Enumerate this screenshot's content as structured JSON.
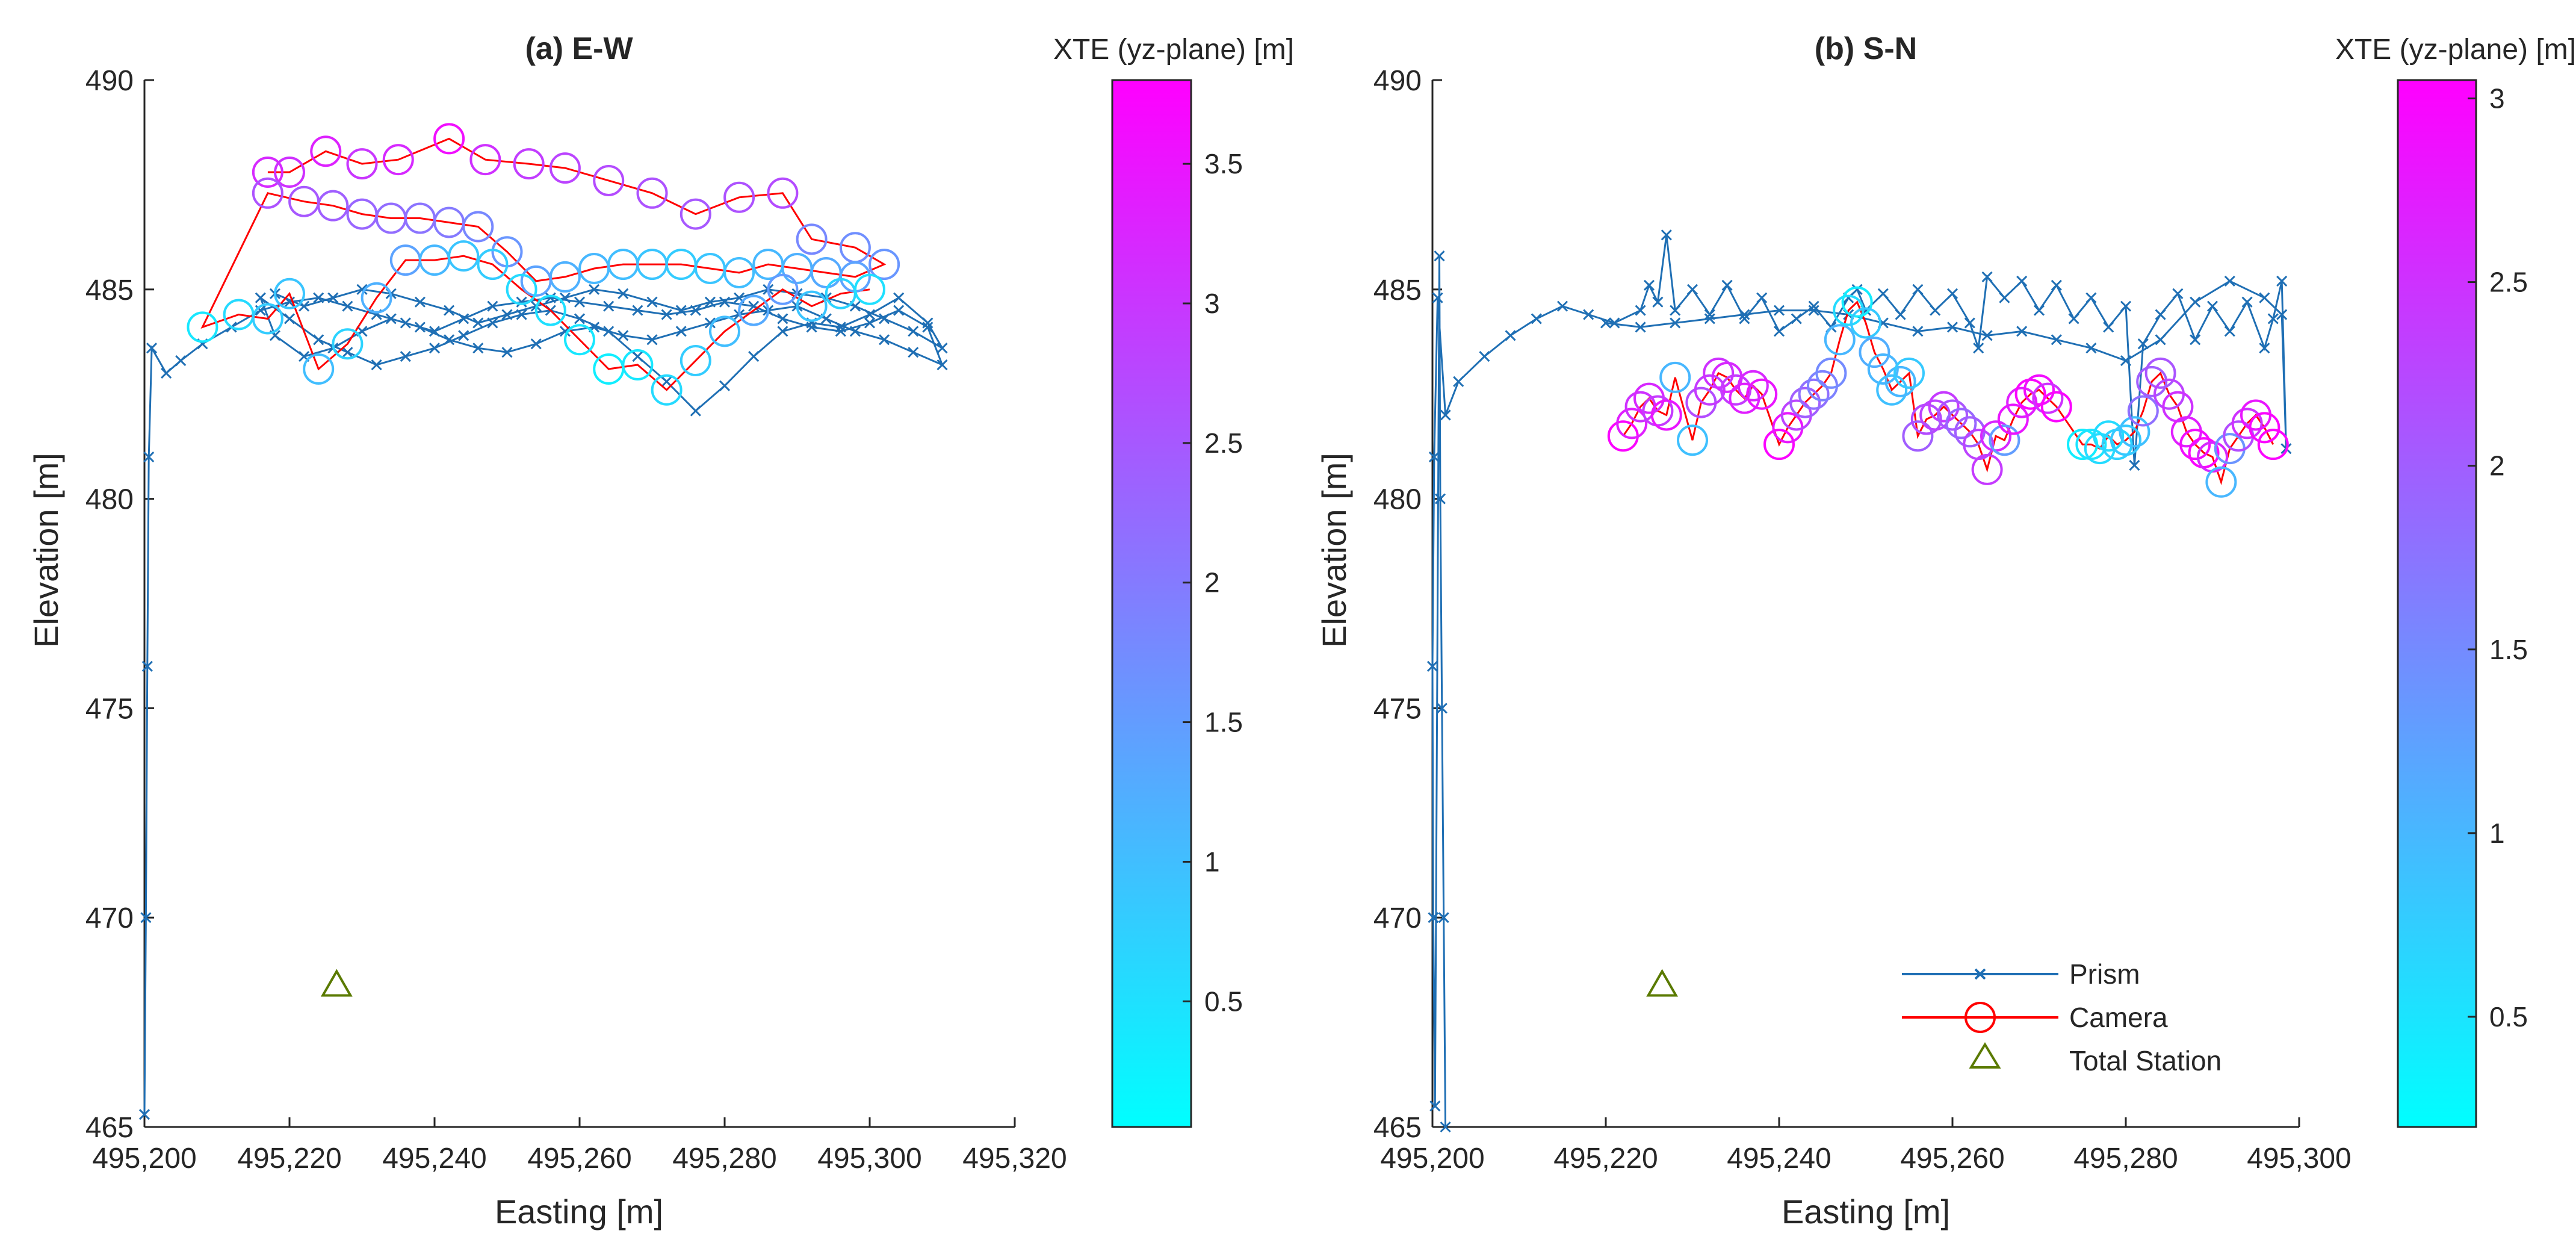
{
  "chart_data": [
    {
      "type": "line",
      "title": "(a) E-W",
      "xlabel": "Easting [m]",
      "ylabel": "Elevation [m]",
      "xlim": [
        495200,
        495320
      ],
      "ylim": [
        465,
        490
      ],
      "xticks": [
        495200,
        495220,
        495240,
        495260,
        495280,
        495300,
        495320
      ],
      "xtick_labels": [
        "495,200",
        "495,220",
        "495,240",
        "495,260",
        "495,280",
        "495,300",
        "495,320"
      ],
      "yticks": [
        465,
        470,
        475,
        480,
        485,
        490
      ],
      "ytick_labels": [
        "465",
        "470",
        "475",
        "480",
        "485",
        "490"
      ],
      "colorbar": {
        "label": "XTE (yz-plane) [m]",
        "range": [
          0.05,
          3.8
        ],
        "ticks": [
          0.5,
          1,
          1.5,
          2,
          2.5,
          3,
          3.5
        ],
        "tick_labels": [
          "0.5",
          "1",
          "1.5",
          "2",
          "2.5",
          "3",
          "3.5"
        ],
        "colormap": [
          "#00ffff",
          "#ff00ff"
        ]
      },
      "total_station": {
        "x": 495226.5,
        "y": 468.4
      },
      "series": [
        {
          "name": "Prism",
          "color": "#1f6fb4",
          "marker": "x",
          "x": [
            495200.0,
            495200.2,
            495200.4,
            495200.6,
            495201.0,
            495203,
            495205,
            495208,
            495212,
            495216,
            495220,
            495224,
            495228,
            495232,
            495236,
            495240,
            495244,
            495248,
            495252,
            495256,
            495260,
            495264,
            495268,
            495272,
            495276,
            495280,
            495284,
            495288,
            495292,
            495296,
            495300,
            495304,
            495308,
            495310,
            495306,
            495302,
            495298,
            495294,
            495290,
            495286,
            495282,
            495278,
            495274,
            495270,
            495266,
            495262,
            495258,
            495254,
            495250,
            495246,
            495242,
            495238,
            495234,
            495230,
            495226,
            495222,
            495218,
            495216,
            495220,
            495224,
            495228,
            495232,
            495236,
            495240,
            495244,
            495248,
            495252,
            495256,
            495260,
            495264,
            495268,
            495272,
            495276,
            495280,
            495284,
            495288,
            495292,
            495296,
            495300,
            495304,
            495308,
            495310,
            495306,
            495302,
            495298,
            495294,
            495290,
            495286,
            495282,
            495278,
            495274,
            495270,
            495266,
            495262,
            495258,
            495254,
            495250,
            495246,
            495242,
            495238,
            495234,
            495230,
            495226,
            495222,
            495218
          ],
          "y": [
            465.3,
            470.0,
            476.0,
            481.0,
            483.6,
            483.0,
            483.3,
            483.7,
            484.1,
            484.5,
            484.7,
            484.8,
            484.6,
            484.4,
            484.2,
            484.0,
            484.3,
            484.6,
            484.7,
            484.8,
            484.7,
            484.6,
            484.5,
            484.4,
            484.5,
            484.7,
            484.6,
            484.3,
            484.1,
            484.0,
            484.2,
            484.5,
            484.1,
            483.2,
            483.5,
            483.8,
            484.0,
            484.3,
            484.6,
            484.5,
            484.4,
            484.2,
            484.0,
            483.8,
            483.9,
            484.1,
            484.0,
            483.7,
            483.5,
            483.6,
            483.8,
            484.1,
            484.3,
            484.0,
            483.6,
            483.4,
            483.9,
            484.8,
            484.3,
            483.8,
            483.5,
            483.2,
            483.4,
            483.6,
            483.9,
            484.2,
            484.4,
            484.5,
            484.3,
            484.0,
            483.4,
            482.8,
            482.1,
            482.7,
            483.4,
            484.0,
            484.2,
            484.1,
            484.4,
            484.8,
            484.2,
            483.6,
            484.0,
            484.3,
            484.6,
            484.8,
            484.9,
            485.0,
            484.8,
            484.7,
            484.5,
            484.7,
            484.9,
            485.0,
            484.8,
            484.6,
            484.4,
            484.2,
            484.5,
            484.7,
            484.9,
            485.0,
            484.8,
            484.6,
            484.9
          ]
        },
        {
          "name": "Camera",
          "color": "#ff0000",
          "marker": "o",
          "x": [
            495217,
            495220,
            495225,
            495230,
            495235,
            495242,
            495247,
            495253,
            495258,
            495264,
            495270,
            495276,
            495282,
            495288,
            495292,
            495298,
            495302,
            495298,
            495294,
            495290,
            495286,
            495282,
            495278,
            495274,
            495270,
            495266,
            495262,
            495258,
            495254,
            495250,
            495246,
            495242,
            495238,
            495234,
            495230,
            495226,
            495222,
            495217,
            495208,
            495213,
            495217,
            495220,
            495224,
            495228,
            495232,
            495236,
            495240,
            495244,
            495248,
            495252,
            495256,
            495260,
            495264,
            495268,
            495272,
            495276,
            495280,
            495284,
            495288,
            495292,
            495296,
            495300
          ],
          "y": [
            487.8,
            487.8,
            488.3,
            488.0,
            488.1,
            488.6,
            488.1,
            488.0,
            487.9,
            487.6,
            487.3,
            486.8,
            487.2,
            487.3,
            486.2,
            486.0,
            485.6,
            485.3,
            485.4,
            485.5,
            485.6,
            485.4,
            485.5,
            485.6,
            485.6,
            485.6,
            485.5,
            485.3,
            485.2,
            485.9,
            486.5,
            486.6,
            486.7,
            486.7,
            486.8,
            487.0,
            487.1,
            487.3,
            484.1,
            484.4,
            484.3,
            484.9,
            483.1,
            483.7,
            484.8,
            485.7,
            485.7,
            485.8,
            485.6,
            485.0,
            484.5,
            483.8,
            483.1,
            483.2,
            482.6,
            483.3,
            484.0,
            484.5,
            485.0,
            484.6,
            484.9,
            485.0
          ],
          "xte": [
            3.2,
            3.1,
            3.3,
            3.0,
            3.2,
            3.6,
            3.1,
            2.9,
            2.8,
            2.7,
            2.6,
            2.5,
            2.6,
            2.7,
            1.8,
            1.7,
            1.6,
            1.4,
            1.3,
            1.2,
            1.1,
            1.0,
            0.9,
            0.8,
            0.9,
            1.0,
            1.1,
            1.2,
            1.4,
            1.6,
            1.8,
            2.0,
            2.1,
            2.2,
            2.3,
            2.4,
            2.5,
            2.6,
            0.4,
            0.6,
            0.8,
            0.9,
            1.0,
            0.7,
            1.2,
            1.4,
            1.1,
            0.9,
            0.8,
            0.6,
            0.5,
            0.4,
            0.3,
            0.4,
            0.6,
            0.8,
            1.0,
            1.3,
            1.5,
            0.9,
            0.7,
            0.5
          ]
        }
      ]
    },
    {
      "type": "line",
      "title": "(b) S-N",
      "xlabel": "Easting [m]",
      "ylabel": "Elevation [m]",
      "xlim": [
        495200,
        495300
      ],
      "ylim": [
        465,
        490
      ],
      "xticks": [
        495200,
        495220,
        495240,
        495260,
        495280,
        495300
      ],
      "xtick_labels": [
        "495,200",
        "495,220",
        "495,240",
        "495,260",
        "495,280",
        "495,300"
      ],
      "yticks": [
        465,
        470,
        475,
        480,
        485,
        490
      ],
      "ytick_labels": [
        "465",
        "470",
        "475",
        "480",
        "485",
        "490"
      ],
      "colorbar": {
        "label": "XTE (yz-plane) [m]",
        "range": [
          0.2,
          3.05
        ],
        "ticks": [
          0.5,
          1,
          1.5,
          2,
          2.5,
          3
        ],
        "tick_labels": [
          "0.5",
          "1",
          "1.5",
          "2",
          "2.5",
          "3"
        ],
        "colormap": [
          "#00ffff",
          "#ff00ff"
        ]
      },
      "legend": {
        "location": "bottom-right",
        "entries": [
          {
            "label": "Prism",
            "marker": "x",
            "color": "#1f6fb4"
          },
          {
            "label": "Camera",
            "marker": "o",
            "color": "#ff0000"
          },
          {
            "label": "Total Station",
            "marker": "triangle",
            "color": "#5a7a00"
          }
        ]
      },
      "total_station": {
        "x": 495226.5,
        "y": 468.4
      },
      "series": [
        {
          "name": "Prism",
          "color": "#1f6fb4",
          "marker": "x",
          "x": [
            495201.5,
            495201.3,
            495201.1,
            495200.9,
            495200.8,
            495200.3,
            495200.1,
            495200.0,
            495200.2,
            495200.6,
            495201.5,
            495203,
            495206,
            495209,
            495212,
            495215,
            495218,
            495221,
            495224,
            495225,
            495226,
            495227,
            495228,
            495230,
            495232,
            495234,
            495236,
            495238,
            495240,
            495242,
            495244,
            495246,
            495248,
            495249,
            495250,
            495252,
            495254,
            495256,
            495258,
            495260,
            495262,
            495263,
            495264,
            495266,
            495268,
            495270,
            495272,
            495274,
            495276,
            495278,
            495280,
            495281,
            495282,
            495284,
            495286,
            495288,
            495290,
            495292,
            495294,
            495296,
            495297,
            495298,
            495298.5,
            495298,
            495296,
            495292,
            495288,
            495284,
            495280,
            495276,
            495272,
            495268,
            495264,
            495260,
            495256,
            495252,
            495248,
            495244,
            495240,
            495236,
            495232,
            495228,
            495224,
            495220
          ],
          "y": [
            465.0,
            470.0,
            475.0,
            480.0,
            485.8,
            465.5,
            470.0,
            476.0,
            481.0,
            484.8,
            482.0,
            482.8,
            483.4,
            483.9,
            484.3,
            484.6,
            484.4,
            484.2,
            484.5,
            485.1,
            484.7,
            486.3,
            484.5,
            485.0,
            484.4,
            485.1,
            484.3,
            484.8,
            484.0,
            484.3,
            484.6,
            484.1,
            484.8,
            485.0,
            484.5,
            484.9,
            484.4,
            485.0,
            484.5,
            484.9,
            484.2,
            483.6,
            485.3,
            484.8,
            485.2,
            484.5,
            485.1,
            484.3,
            484.8,
            484.1,
            484.6,
            480.8,
            483.7,
            484.4,
            484.9,
            483.8,
            484.6,
            484.0,
            484.7,
            483.6,
            484.3,
            485.2,
            481.2,
            484.4,
            484.8,
            485.2,
            484.7,
            483.8,
            483.3,
            483.6,
            483.8,
            484.0,
            483.9,
            484.1,
            484.0,
            484.2,
            484.4,
            484.5,
            484.5,
            484.4,
            484.3,
            484.2,
            484.1,
            484.2
          ]
        },
        {
          "name": "Camera",
          "color": "#ff0000",
          "marker": "o",
          "x": [
            495222,
            495223,
            495224,
            495225,
            495226,
            495227,
            495228,
            495230,
            495231,
            495232,
            495233,
            495234,
            495235,
            495236,
            495237,
            495238,
            495240,
            495241,
            495242,
            495243,
            495244,
            495245,
            495246,
            495247,
            495248,
            495249,
            495250,
            495251,
            495252,
            495253,
            495254,
            495255,
            495256,
            495257,
            495258,
            495259,
            495260,
            495261,
            495262,
            495263,
            495264,
            495265,
            495266,
            495267,
            495268,
            495269,
            495270,
            495271,
            495272,
            495275,
            495276,
            495277,
            495278,
            495279,
            495280,
            495281,
            495282,
            495283,
            495284,
            495285,
            495286,
            495287,
            495288,
            495289,
            495290,
            495291,
            495292,
            495293,
            495294,
            495295,
            495296,
            495297
          ],
          "y": [
            481.5,
            481.8,
            482.2,
            482.4,
            482.1,
            482.0,
            482.9,
            481.4,
            482.3,
            482.6,
            483.0,
            482.9,
            482.6,
            482.4,
            482.7,
            482.5,
            481.3,
            481.7,
            482.0,
            482.3,
            482.5,
            482.7,
            483.0,
            483.8,
            484.5,
            484.7,
            484.2,
            483.5,
            483.1,
            482.6,
            482.8,
            483.0,
            481.5,
            481.9,
            482.0,
            482.2,
            482.0,
            481.8,
            481.6,
            481.3,
            480.7,
            481.5,
            481.4,
            481.9,
            482.3,
            482.5,
            482.6,
            482.4,
            482.2,
            481.3,
            481.3,
            481.2,
            481.5,
            481.3,
            481.4,
            481.6,
            482.1,
            482.8,
            483.0,
            482.5,
            482.2,
            481.6,
            481.3,
            481.1,
            481.0,
            480.4,
            481.2,
            481.5,
            481.8,
            482.0,
            481.7,
            481.3
          ],
          "xte": [
            3.0,
            2.7,
            2.5,
            2.6,
            2.4,
            2.8,
            1.0,
            0.9,
            2.2,
            2.4,
            2.5,
            2.6,
            2.4,
            2.7,
            2.6,
            2.8,
            3.0,
            2.8,
            2.3,
            2.0,
            1.8,
            1.6,
            1.5,
            1.0,
            0.6,
            0.4,
            0.8,
            1.1,
            1.0,
            0.9,
            1.0,
            0.8,
            2.0,
            2.2,
            2.3,
            2.4,
            2.1,
            1.9,
            2.0,
            2.3,
            2.4,
            2.6,
            1.3,
            2.8,
            2.7,
            3.0,
            2.9,
            2.5,
            3.0,
            0.4,
            0.5,
            0.6,
            0.6,
            0.7,
            0.8,
            0.9,
            1.8,
            2.0,
            2.1,
            2.3,
            2.5,
            2.7,
            2.9,
            3.0,
            2.6,
            1.0,
            1.4,
            2.2,
            2.5,
            2.8,
            3.0,
            3.0
          ]
        }
      ]
    }
  ]
}
